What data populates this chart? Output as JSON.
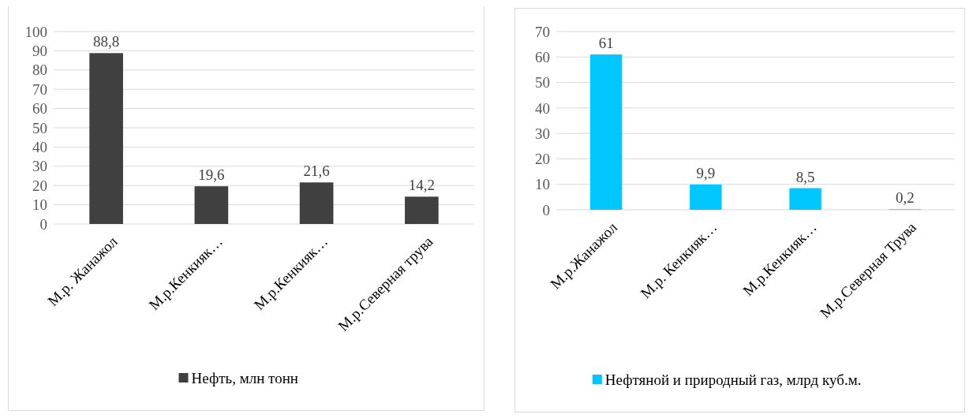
{
  "chart_data": [
    {
      "type": "bar",
      "categories": [
        "М.р. Жанажол",
        "М.р.Кенкияк…",
        "М.р.Кенкияк…",
        "М.р.Северная трува"
      ],
      "series": [
        {
          "name": "Нефть, млн тонн",
          "color": "#404040",
          "values": [
            88.8,
            19.6,
            21.6,
            14.2
          ],
          "value_labels": [
            "88,8",
            "19,6",
            "21,6",
            "14,2"
          ]
        }
      ],
      "ylim": [
        0,
        100
      ],
      "yticks": [
        0,
        10,
        20,
        30,
        40,
        50,
        60,
        70,
        80,
        90,
        100
      ],
      "grid": "y",
      "legend": "bottom"
    },
    {
      "type": "bar",
      "categories": [
        "М.р.Жанажол",
        "М.р. Кенкияк…",
        "М.р.Кенкияк…",
        "М.р.Северная Трува"
      ],
      "series": [
        {
          "name": "Нефтяной и природный газ, млрд куб.м.",
          "color": "#00c8ff",
          "values": [
            61,
            9.9,
            8.5,
            0.2
          ],
          "value_labels": [
            "61",
            "9,9",
            "8,5",
            "0,2"
          ]
        }
      ],
      "ylim": [
        0,
        70
      ],
      "yticks": [
        0,
        10,
        20,
        30,
        40,
        50,
        60,
        70
      ],
      "grid": "y",
      "legend": "bottom"
    }
  ]
}
